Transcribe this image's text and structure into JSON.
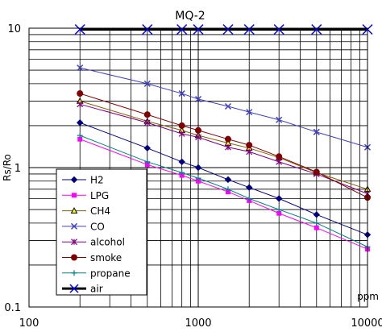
{
  "chart_data": {
    "type": "line",
    "title": "MQ-2",
    "xlabel": "",
    "x_unit": "ppm",
    "ylabel": "Rs/Ro",
    "x_scale": "log",
    "y_scale": "log",
    "xlim": [
      100,
      10000
    ],
    "ylim": [
      0.1,
      10
    ],
    "x_tick_labels": [
      "100",
      "1000",
      "10000"
    ],
    "y_tick_labels": [
      "10",
      "1",
      "0.1"
    ],
    "grid": true,
    "legend_position": "bottom-left",
    "series": [
      {
        "name": "H2",
        "color": "#000080",
        "marker": "diamond",
        "line_width": 1,
        "x": [
          200,
          500,
          800,
          1000,
          1500,
          2000,
          3000,
          5000,
          10000
        ],
        "y": [
          2.1,
          1.38,
          1.1,
          1.0,
          0.82,
          0.72,
          0.6,
          0.46,
          0.33
        ]
      },
      {
        "name": "LPG",
        "color": "#ff00ff",
        "marker": "square",
        "line_width": 1,
        "x": [
          200,
          500,
          800,
          1000,
          1500,
          2000,
          3000,
          5000,
          10000
        ],
        "y": [
          1.6,
          1.05,
          0.88,
          0.8,
          0.67,
          0.58,
          0.47,
          0.37,
          0.26
        ]
      },
      {
        "name": "CH4",
        "color": "#806000",
        "marker": "triangle",
        "line_width": 1,
        "x": [
          200,
          500,
          800,
          1000,
          1500,
          2000,
          3000,
          5000,
          10000
        ],
        "y": [
          3.0,
          2.15,
          1.85,
          1.7,
          1.5,
          1.38,
          1.18,
          0.92,
          0.7
        ]
      },
      {
        "name": "CO",
        "color": "#4040c0",
        "marker": "x",
        "line_width": 1,
        "x": [
          200,
          500,
          800,
          1000,
          1500,
          2000,
          3000,
          5000,
          10000
        ],
        "y": [
          5.2,
          4.0,
          3.4,
          3.1,
          2.75,
          2.5,
          2.2,
          1.8,
          1.4
        ]
      },
      {
        "name": "alcohol",
        "color": "#800080",
        "marker": "asterisk",
        "line_width": 1,
        "x": [
          200,
          500,
          800,
          1000,
          1500,
          2000,
          3000,
          5000,
          10000
        ],
        "y": [
          2.85,
          2.1,
          1.75,
          1.65,
          1.4,
          1.3,
          1.1,
          0.9,
          0.65
        ]
      },
      {
        "name": "smoke",
        "color": "#800000",
        "marker": "circle",
        "line_width": 1,
        "x": [
          200,
          500,
          800,
          1000,
          1500,
          2000,
          3000,
          5000,
          10000
        ],
        "y": [
          3.4,
          2.4,
          2.0,
          1.85,
          1.6,
          1.45,
          1.2,
          0.93,
          0.61
        ]
      },
      {
        "name": "propane",
        "color": "#008080",
        "marker": "plus",
        "line_width": 1,
        "x": [
          200,
          500,
          800,
          1000,
          1500,
          2000,
          3000,
          5000,
          10000
        ],
        "y": [
          1.7,
          1.1,
          0.92,
          0.84,
          0.7,
          0.6,
          0.5,
          0.4,
          0.27
        ]
      },
      {
        "name": "air",
        "color": "#0000ff",
        "marker": "x",
        "line_width": 3,
        "line_color": "#000000",
        "x": [
          200,
          500,
          800,
          1000,
          1500,
          2000,
          3000,
          5000,
          10000
        ],
        "y": [
          9.8,
          9.8,
          9.8,
          9.8,
          9.8,
          9.8,
          9.8,
          9.8,
          9.8
        ]
      }
    ]
  }
}
